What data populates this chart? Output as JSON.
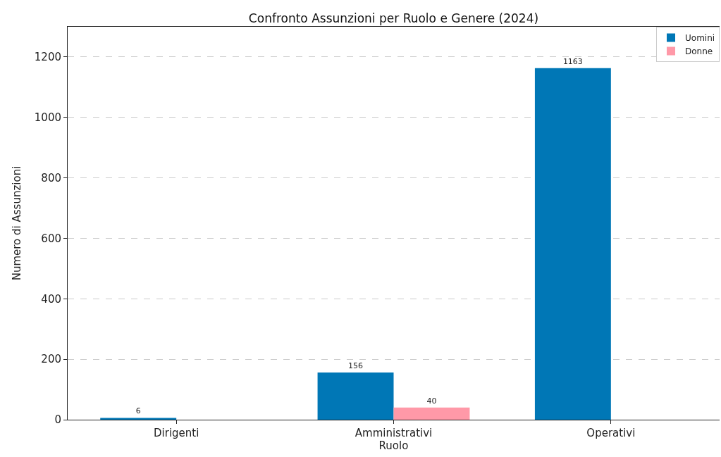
{
  "chart_data": {
    "type": "bar",
    "title": "Confronto Assunzioni per Ruolo e Genere (2024)",
    "xlabel": "Ruolo",
    "ylabel": "Numero di Assunzioni",
    "categories": [
      "Dirigenti",
      "Amministrativi",
      "Operativi"
    ],
    "series": [
      {
        "name": "Uomini",
        "color": "#0077b6",
        "values": [
          6,
          156,
          1163
        ],
        "value_labels": [
          "6",
          "156",
          "1163"
        ]
      },
      {
        "name": "Donne",
        "color": "#ff99a8",
        "values": [
          0,
          40,
          0
        ],
        "value_labels": [
          null,
          "40",
          null
        ]
      }
    ],
    "ylim": [
      0,
      1300
    ],
    "yticks": [
      0,
      200,
      400,
      600,
      800,
      1000,
      1200
    ],
    "grid": "y",
    "legend": "top right"
  }
}
